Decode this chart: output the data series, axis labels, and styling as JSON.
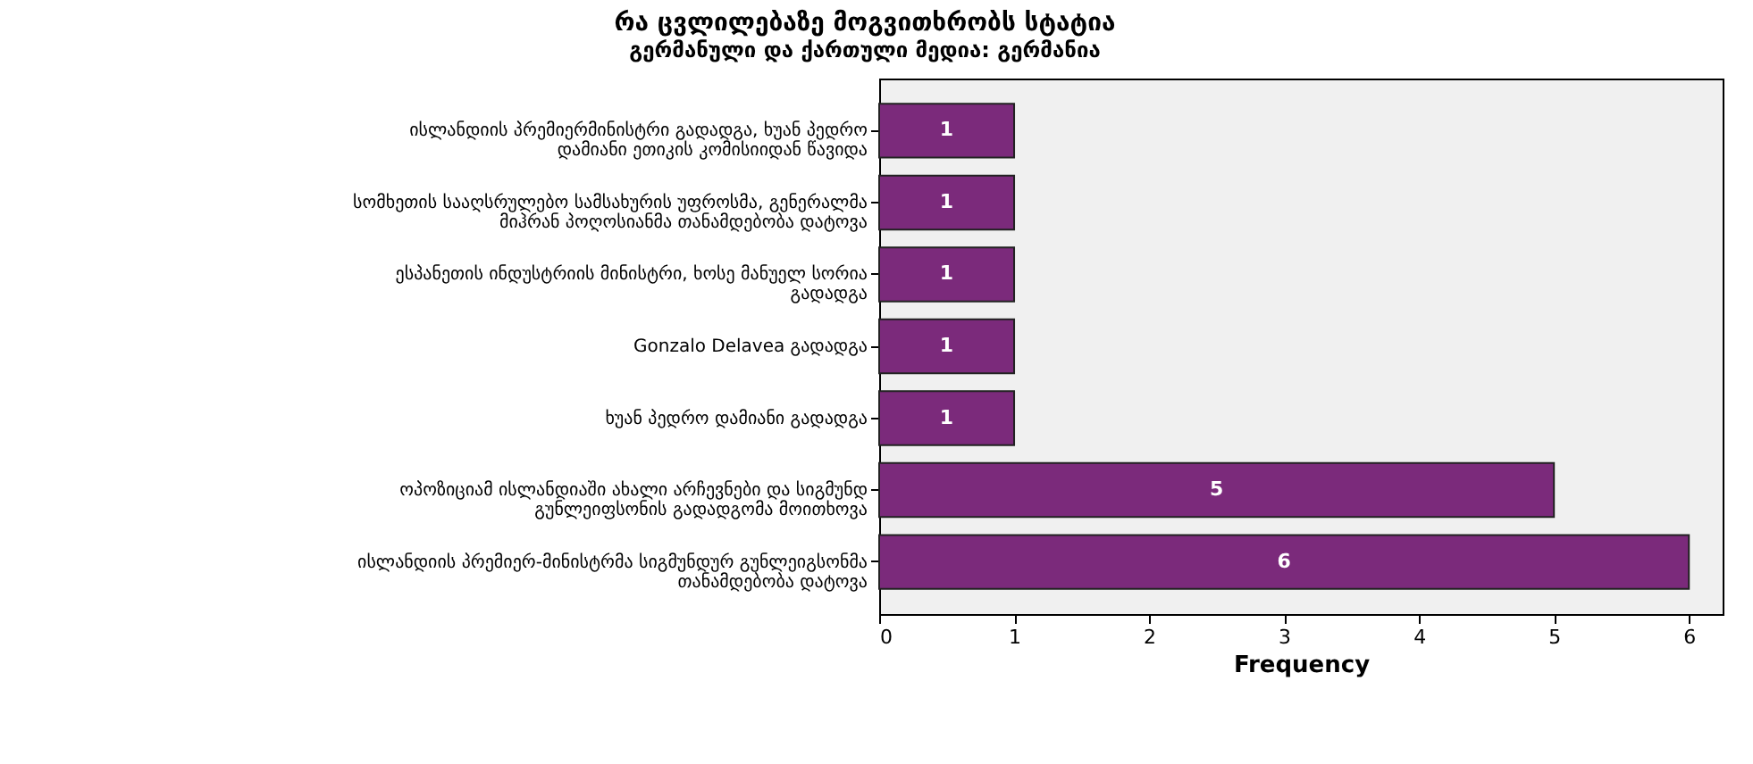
{
  "chart_data": {
    "type": "bar",
    "orientation": "horizontal",
    "title": "რა ცვლილებაზე მოგვითხრობს სტატია",
    "subtitle": "გერმანული და ქართული მედია: გერმანია",
    "xlabel": "Frequency",
    "categories": [
      "ისლანდიის პრემიერმინისტრი გადადგა, ხუან პედრო დამიანი ეთიკის კომისიიდან წავიდა",
      "სომხეთის სააღსრულებო სამსახურის უფროსმა, გენერალმა მიჰრან პოღოსიანმა თანამდებობა დატოვა",
      "ესპანეთის ინდუსტრიის მინისტრი, ხოსე მანუელ სორია გადადგა",
      "Gonzalo Delavea გადადგა",
      "ხუან პედრო დამიანი გადადგა",
      "ოპოზიციამ ისლანდიაში ახალი არჩევნები და სიგმუნდ გუნლეიფსონის გადადგომა მოითხოვა",
      "ისლანდიის პრემიერ-მინისტრმა სიგმუნდურ გუნლეიგსონმა თანამდებობა დატოვა"
    ],
    "values": [
      1,
      1,
      1,
      1,
      1,
      5,
      6
    ],
    "color": "#7b2a7b",
    "xlim": [
      0,
      6.25
    ],
    "xticks": [
      0,
      1,
      2,
      3,
      4,
      5,
      6
    ],
    "data_labels": true,
    "grid": false
  }
}
